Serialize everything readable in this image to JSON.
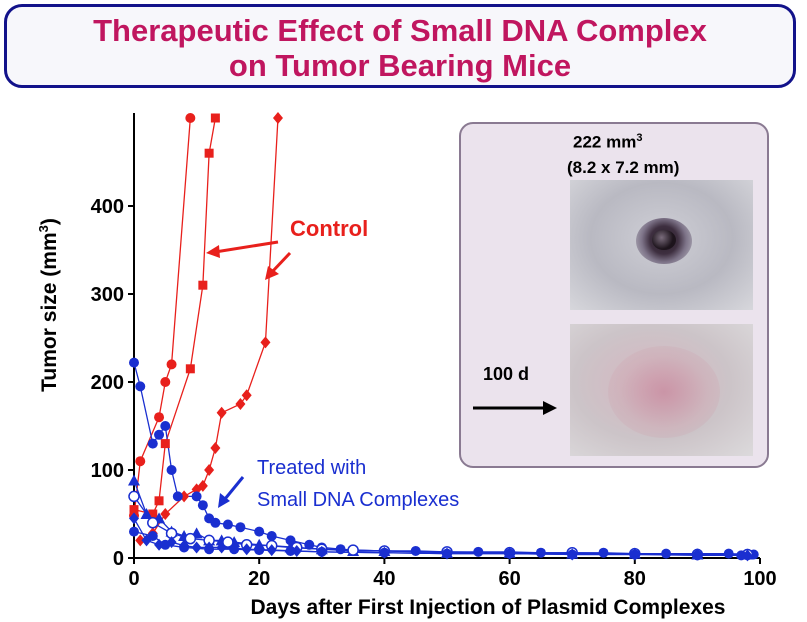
{
  "title": {
    "line1": "Therapeutic Effect of Small DNA Complex",
    "line2": "on Tumor Bearing Mice"
  },
  "colors": {
    "title_text": "#c0165f",
    "title_border": "#12128a",
    "control": "#e8201c",
    "treated": "#1a2fd0"
  },
  "chart_data": {
    "type": "line",
    "xlabel": "Days after First Injection of Plasmid Complexes",
    "ylabel": "Tumor size (mm3)",
    "ylabel_main": "Tumor size  (mm",
    "ylabel_sup": "3",
    "ylabel_end": ")",
    "xlim": [
      0,
      100
    ],
    "ylim": [
      0,
      500
    ],
    "x_ticks": [
      "0",
      "20",
      "40",
      "60",
      "80",
      "100"
    ],
    "y_ticks": [
      "0",
      "100",
      "200",
      "300",
      "400"
    ],
    "annotations": {
      "control": "Control",
      "treated_line1": "Treated with",
      "treated_line2": "Small DNA Complexes"
    },
    "series": [
      {
        "group": "control",
        "marker": "circle",
        "x": [
          0,
          1,
          4,
          5,
          6,
          9
        ],
        "y": [
          48,
          110,
          160,
          200,
          220,
          500
        ]
      },
      {
        "group": "control",
        "marker": "square",
        "x": [
          0,
          3,
          4,
          5,
          9,
          11,
          12,
          13
        ],
        "y": [
          55,
          50,
          65,
          130,
          215,
          310,
          460,
          500
        ]
      },
      {
        "group": "control",
        "marker": "diamond",
        "x": [
          1,
          3,
          5,
          8,
          10,
          11,
          12,
          13,
          14,
          17,
          18,
          21,
          23
        ],
        "y": [
          20,
          28,
          50,
          70,
          78,
          82,
          100,
          125,
          165,
          175,
          185,
          245,
          500
        ]
      },
      {
        "group": "treated",
        "marker": "circle",
        "x": [
          0,
          1,
          3,
          4,
          5,
          6,
          7,
          10,
          11,
          12,
          13,
          15,
          17,
          20,
          22,
          25,
          28,
          30,
          33,
          35,
          40,
          45,
          50,
          55,
          60,
          65,
          70,
          75,
          80,
          85,
          90,
          95,
          99
        ],
        "y": [
          222,
          195,
          130,
          140,
          150,
          100,
          70,
          70,
          60,
          45,
          40,
          38,
          35,
          30,
          25,
          20,
          15,
          12,
          10,
          9,
          8,
          8,
          7,
          7,
          7,
          6,
          6,
          6,
          5,
          5,
          5,
          5,
          4
        ]
      },
      {
        "group": "treated",
        "marker": "triangle",
        "x": [
          0,
          2,
          4,
          6,
          8,
          10,
          12,
          14,
          16,
          20,
          25,
          30,
          35,
          40,
          50,
          60,
          70,
          80,
          90,
          98
        ],
        "y": [
          88,
          50,
          45,
          30,
          25,
          28,
          20,
          20,
          18,
          15,
          12,
          10,
          8,
          8,
          6,
          6,
          5,
          5,
          4,
          4
        ]
      },
      {
        "group": "treated",
        "marker": "open-circle",
        "x": [
          0,
          3,
          6,
          9,
          12,
          15,
          18,
          22,
          26,
          30,
          35,
          40,
          50,
          60,
          70,
          80,
          90,
          98
        ],
        "y": [
          70,
          40,
          28,
          22,
          20,
          18,
          15,
          14,
          12,
          10,
          9,
          8,
          7,
          6,
          6,
          5,
          4,
          4
        ]
      },
      {
        "group": "treated",
        "marker": "diamond",
        "x": [
          0,
          2,
          4,
          6,
          8,
          10,
          12,
          14,
          18,
          22,
          26,
          30,
          40,
          50,
          60,
          70,
          80,
          90,
          98
        ],
        "y": [
          45,
          20,
          15,
          18,
          14,
          12,
          12,
          12,
          10,
          9,
          8,
          7,
          6,
          5,
          5,
          4,
          4,
          4,
          3
        ]
      },
      {
        "group": "treated",
        "marker": "circle",
        "x": [
          0,
          3,
          5,
          8,
          12,
          16,
          20,
          25,
          30,
          40,
          50,
          60,
          70,
          80,
          90,
          97
        ],
        "y": [
          30,
          25,
          15,
          12,
          10,
          10,
          9,
          8,
          7,
          6,
          5,
          5,
          4,
          4,
          3,
          3
        ]
      }
    ]
  },
  "inset": {
    "size_label": "222 mm",
    "size_sup": "3",
    "dims_label": "(8.2 x 7.2 mm)",
    "day_label": "100 d",
    "arrow_icon": "right-arrow-icon"
  }
}
